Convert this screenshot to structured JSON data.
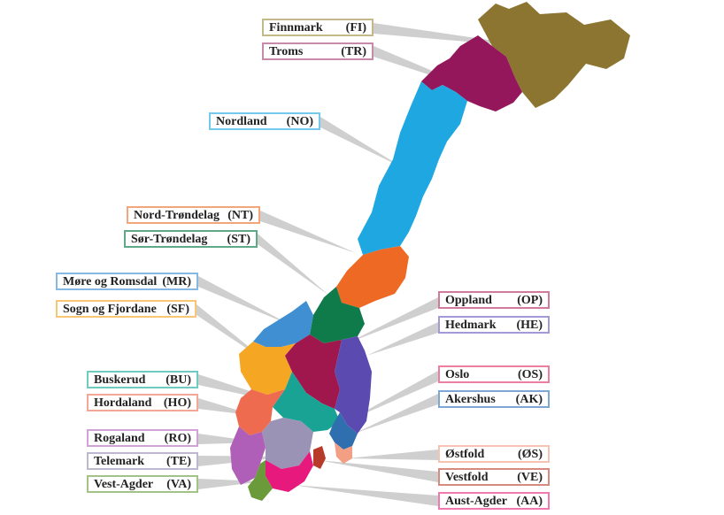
{
  "counties": [
    {
      "id": "fi",
      "name": "Finnmark",
      "code": "(FI)",
      "color": "#8c7530"
    },
    {
      "id": "tr",
      "name": "Troms",
      "code": "(TR)",
      "color": "#93175a"
    },
    {
      "id": "no",
      "name": "Nordland",
      "code": "(NO)",
      "color": "#1ea7e1"
    },
    {
      "id": "nt",
      "name": "Nord-Trøndelag",
      "code": "(NT)",
      "color": "#ee6a24"
    },
    {
      "id": "st",
      "name": "Sør-Trøndelag",
      "code": "(ST)",
      "color": "#0f7a4a"
    },
    {
      "id": "mr",
      "name": "Møre og Romsdal",
      "code": "(MR)",
      "color": "#3f8fd2"
    },
    {
      "id": "sf",
      "name": "Sogn og Fjordane",
      "code": "(SF)",
      "color": "#f5a623"
    },
    {
      "id": "op",
      "name": "Oppland",
      "code": "(OP)",
      "color": "#a0174e"
    },
    {
      "id": "he",
      "name": "Hedmark",
      "code": "(HE)",
      "color": "#5b4bb1"
    },
    {
      "id": "bu",
      "name": "Buskerud",
      "code": "(BU)",
      "color": "#18a394"
    },
    {
      "id": "ho",
      "name": "Hordaland",
      "code": "(HO)",
      "color": "#ef6b4f"
    },
    {
      "id": "os",
      "name": "Oslo",
      "code": "(OS)",
      "color": "#e0245e"
    },
    {
      "id": "ak",
      "name": "Akershus",
      "code": "(AK)",
      "color": "#2f6fb0"
    },
    {
      "id": "ro",
      "name": "Rogaland",
      "code": "(RO)",
      "color": "#b05fb8"
    },
    {
      "id": "te",
      "name": "Telemark",
      "code": "(TE)",
      "color": "#9b93b5"
    },
    {
      "id": "va",
      "name": "Vest-Agder",
      "code": "(VA)",
      "color": "#6a9a3a"
    },
    {
      "id": "os2",
      "name": "Østfold",
      "code": "(ØS)",
      "color": "#f29f84"
    },
    {
      "id": "ve",
      "name": "Vestfold",
      "code": "(VE)",
      "color": "#b73a2a"
    },
    {
      "id": "aa",
      "name": "Aust-Agder",
      "code": "(AA)",
      "color": "#e8197c"
    }
  ]
}
